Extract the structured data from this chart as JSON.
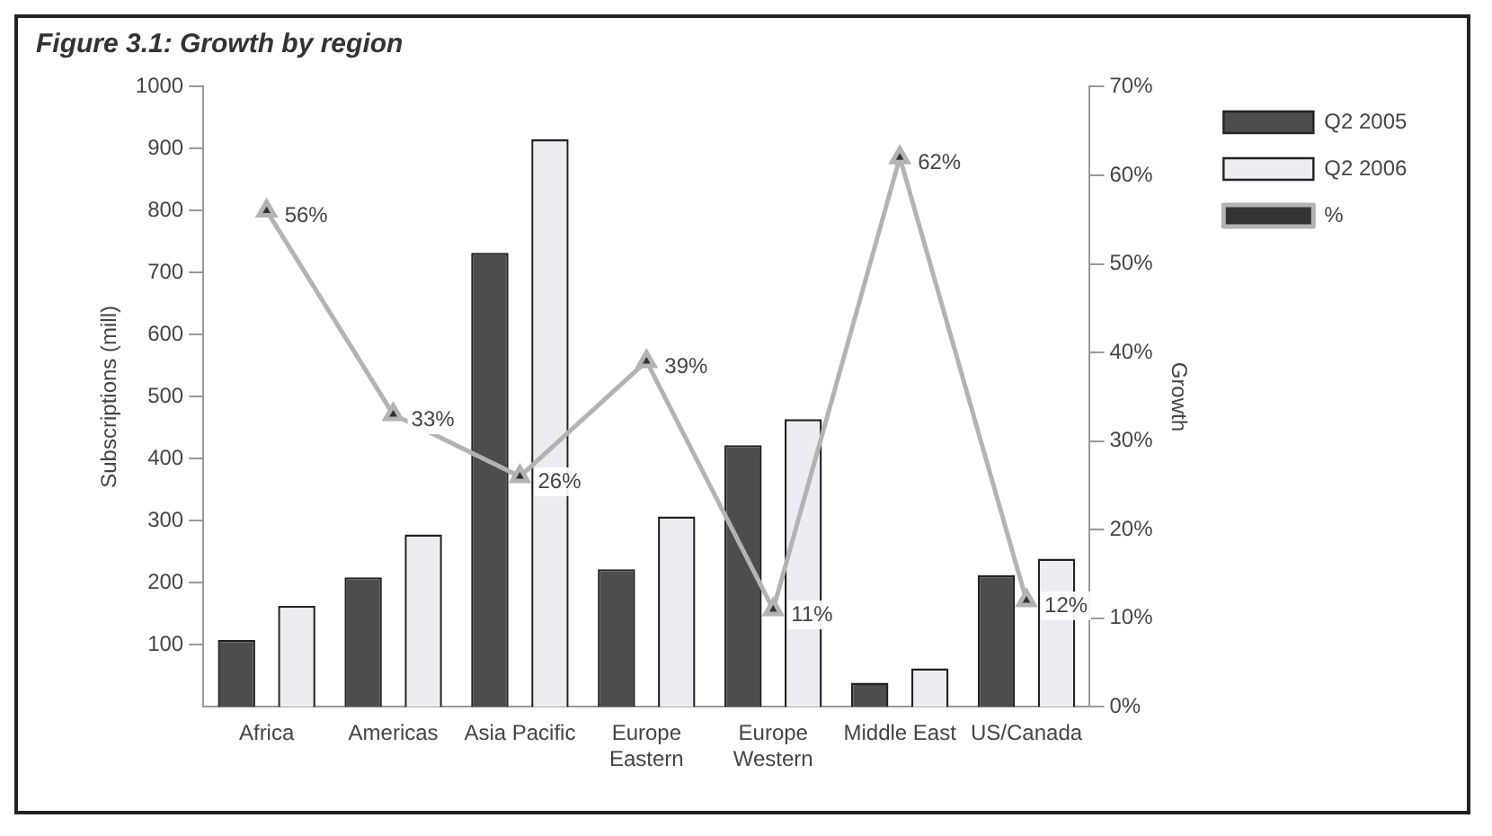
{
  "chart_data": {
    "type": "bar",
    "title": "Figure 3.1: Growth by region",
    "categories": [
      "Africa",
      "Americas",
      "Asia Pacific",
      "Europe Eastern",
      "Europe Western",
      "Middle East",
      "US/Canada"
    ],
    "series": [
      {
        "name": "Q2 2005",
        "color": "#4d4d4d",
        "values": [
          108,
          209,
          732,
          222,
          422,
          39,
          212
        ]
      },
      {
        "name": "Q2 2006",
        "color": "#ececf2",
        "values": [
          163,
          278,
          915,
          307,
          464,
          62,
          239
        ]
      },
      {
        "name": "%",
        "type": "line",
        "axis": "y2",
        "color": "#b3b3b3",
        "marker": "triangle",
        "values": [
          56,
          33,
          26,
          39,
          11,
          62,
          12
        ],
        "value_labels": [
          "56%",
          "33%",
          "26%",
          "39%",
          "11%",
          "62%",
          "12%"
        ]
      }
    ],
    "ylabel": "Subscriptions (mill)",
    "y2label": "Growth",
    "ylim": [
      0,
      1000
    ],
    "yticks": [
      100,
      200,
      300,
      400,
      500,
      600,
      700,
      800,
      900,
      1000
    ],
    "y2lim": [
      0,
      70
    ],
    "y2ticks": [
      {
        "value": 0,
        "label": "0%"
      },
      {
        "value": 10,
        "label": "10%"
      },
      {
        "value": 20,
        "label": "20%"
      },
      {
        "value": 30,
        "label": "30%"
      },
      {
        "value": 40,
        "label": "40%"
      },
      {
        "value": 50,
        "label": "50%"
      },
      {
        "value": 60,
        "label": "60%"
      },
      {
        "value": 70,
        "label": "70%"
      }
    ],
    "grid": false,
    "legend": "right"
  }
}
